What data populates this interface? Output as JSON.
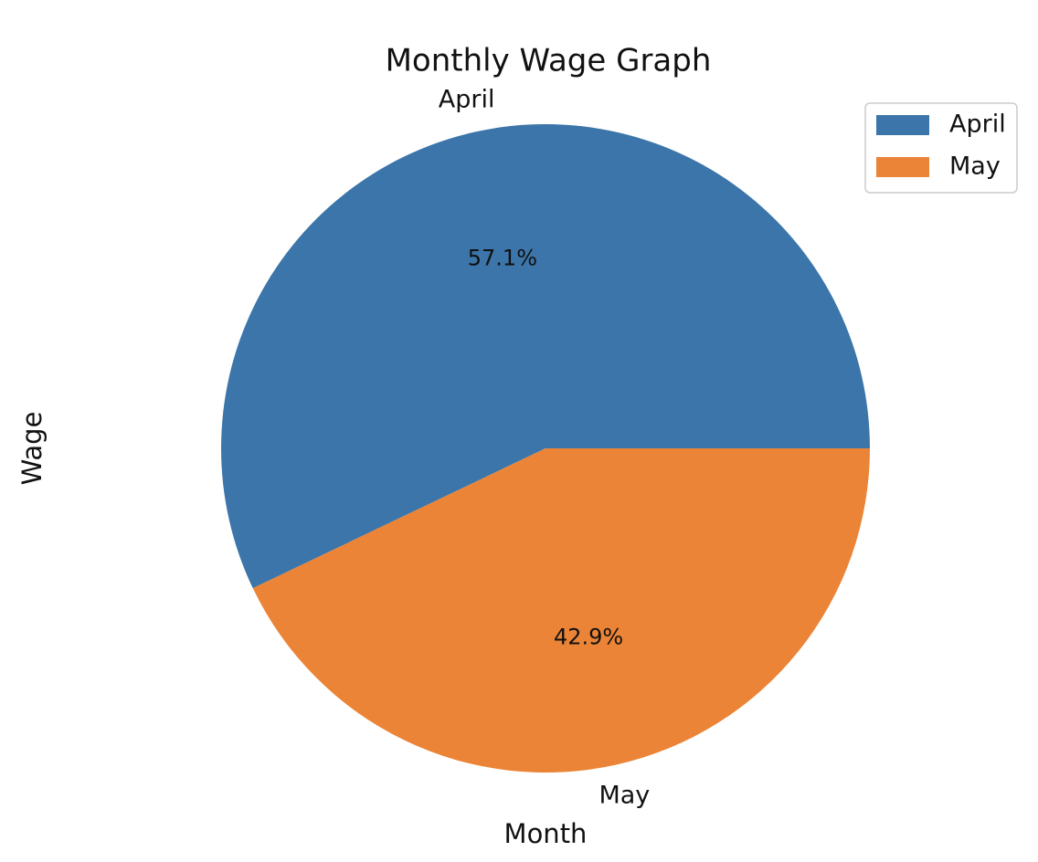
{
  "chart_data": {
    "type": "pie",
    "title": "Monthly Wage Graph",
    "xlabel": "Month",
    "ylabel": "Wage",
    "categories": [
      "April",
      "May"
    ],
    "values": [
      57.1,
      42.9
    ],
    "value_labels": [
      "57.1%",
      "42.9%"
    ],
    "colors": [
      "#3b75a9",
      "#eb8436"
    ],
    "start_angle": 0,
    "legend": "upper right"
  }
}
